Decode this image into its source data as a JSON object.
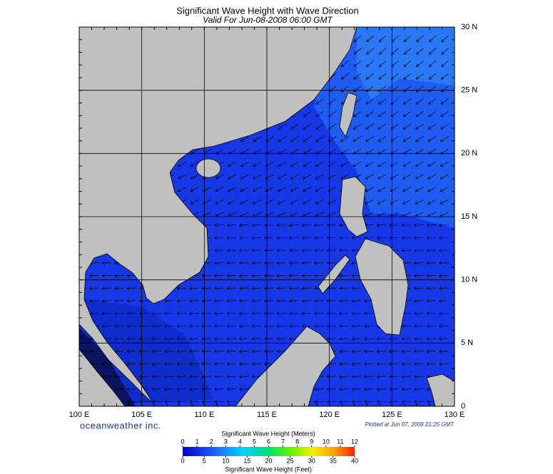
{
  "title": "Significant Wave Height with Wave Direction",
  "subtitle": "Valid For Jun-08-2008 06:00 GMT",
  "map": {
    "lat_labels": [
      "0",
      "5 N",
      "10 N",
      "15 N",
      "20 N",
      "25 N",
      "30 N"
    ],
    "lon_labels": [
      "100 E",
      "105 E",
      "110 E",
      "115 E",
      "120 E",
      "125 E",
      "130 E"
    ]
  },
  "brand": "oceanweather inc.",
  "plotted": "Plotted at Jun 07, 2008 21:25 GMT",
  "colorbar": {
    "meters_title": "Significant Wave Height (Meters)",
    "meters_ticks": [
      0,
      1,
      2,
      3,
      4,
      5,
      6,
      7,
      8,
      9,
      10,
      11,
      12
    ],
    "feet_ticks": [
      0,
      5,
      10,
      15,
      20,
      25,
      30,
      35,
      40
    ],
    "feet_title": "Significant Wave Height (Feet)"
  }
}
